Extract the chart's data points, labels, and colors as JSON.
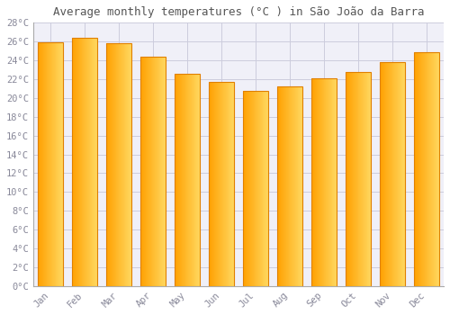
{
  "title": "Average monthly temperatures (°C ) in São João da Barra",
  "months": [
    "Jan",
    "Feb",
    "Mar",
    "Apr",
    "May",
    "Jun",
    "Jul",
    "Aug",
    "Sep",
    "Oct",
    "Nov",
    "Dec"
  ],
  "temperatures": [
    25.9,
    26.4,
    25.8,
    24.4,
    22.6,
    21.7,
    20.8,
    21.2,
    22.1,
    22.8,
    23.8,
    24.9
  ],
  "bar_color_left": "#FFA500",
  "bar_color_right": "#FFD070",
  "bar_edge_color": "#E08000",
  "background_color": "#FFFFFF",
  "plot_bg_color": "#F0F0F8",
  "grid_color": "#CCCCDD",
  "text_color": "#888899",
  "title_color": "#555555",
  "ylim": [
    0,
    28
  ],
  "yticks": [
    0,
    2,
    4,
    6,
    8,
    10,
    12,
    14,
    16,
    18,
    20,
    22,
    24,
    26,
    28
  ],
  "title_fontsize": 9,
  "tick_fontsize": 7.5,
  "figsize": [
    5.0,
    3.5
  ],
  "dpi": 100
}
